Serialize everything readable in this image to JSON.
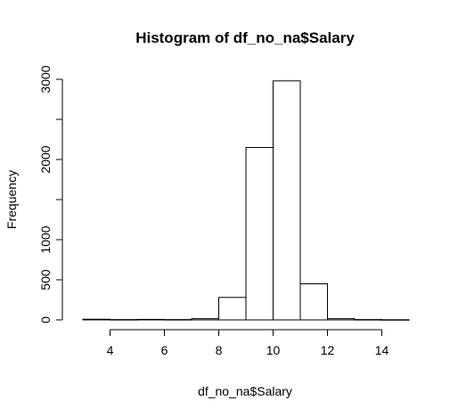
{
  "chart_data": {
    "type": "bar",
    "title": "Histogram of df_no_na$Salary",
    "xlabel": "df_no_na$Salary",
    "ylabel": "Frequency",
    "bin_edges": [
      3,
      4,
      5,
      6,
      7,
      8,
      9,
      10,
      11,
      12,
      13,
      14,
      15
    ],
    "values": [
      8,
      4,
      6,
      4,
      15,
      280,
      2150,
      2980,
      450,
      15,
      4,
      2
    ],
    "xlim": [
      3,
      15
    ],
    "ylim": [
      0,
      3000
    ],
    "x_ticks": [
      4,
      6,
      8,
      10,
      12,
      14
    ],
    "y_ticks": [
      0,
      500,
      1000,
      2000,
      3000
    ],
    "grid": false,
    "colors": {
      "bar_fill": "#ffffff",
      "bar_stroke": "#000000"
    }
  }
}
